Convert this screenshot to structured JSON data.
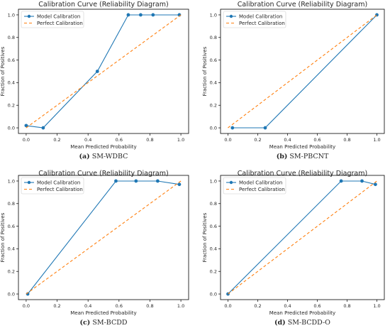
{
  "colors": {
    "model": "#1f77b4",
    "perfect": "#ff7f0e",
    "axis": "#000000",
    "text": "#262626"
  },
  "chart_data": [
    {
      "type": "line",
      "title": "Calibration Curve (Reliability Diagram)",
      "xlabel": "Mean Predicted Probability",
      "ylabel": "Fraction of Positives",
      "caption_letter": "(a)",
      "caption_text": "SM-WDBC",
      "xlim": [
        -0.05,
        1.05
      ],
      "ylim": [
        -0.05,
        1.05
      ],
      "xticks": [
        "0.0",
        "0.2",
        "0.4",
        "0.6",
        "0.8",
        "1.0"
      ],
      "yticks": [
        "0.0",
        "0.2",
        "0.4",
        "0.6",
        "0.8",
        "1.0"
      ],
      "legend_position": "upper-left",
      "series": [
        {
          "name": "Model Calibration",
          "style": "solid-marker",
          "x": [
            0.0,
            0.11,
            0.46,
            0.66,
            0.74,
            0.82,
            0.99
          ],
          "y": [
            0.02,
            0.0,
            0.5,
            1.0,
            1.0,
            1.0,
            1.0
          ]
        },
        {
          "name": "Perfect Calibration",
          "style": "dashed",
          "x": [
            0.0,
            1.0
          ],
          "y": [
            0.0,
            1.0
          ]
        }
      ]
    },
    {
      "type": "line",
      "title": "Calibration Curve (Reliability Diagram)",
      "xlabel": "Mean Predicted Probability",
      "ylabel": "Fraction of Positives",
      "caption_letter": "(b)",
      "caption_text": "SM-PBCNT",
      "xlim": [
        -0.05,
        1.05
      ],
      "ylim": [
        -0.05,
        1.05
      ],
      "xticks": [
        "0.0",
        "0.2",
        "0.4",
        "0.6",
        "0.8",
        "1.0"
      ],
      "yticks": [
        "0.0",
        "0.2",
        "0.4",
        "0.6",
        "0.8",
        "1.0"
      ],
      "legend_position": "upper-left",
      "series": [
        {
          "name": "Model Calibration",
          "style": "solid-marker",
          "x": [
            0.03,
            0.25,
            1.0
          ],
          "y": [
            0.0,
            0.0,
            1.0
          ]
        },
        {
          "name": "Perfect Calibration",
          "style": "dashed",
          "x": [
            0.0,
            1.0
          ],
          "y": [
            0.0,
            1.0
          ]
        }
      ]
    },
    {
      "type": "line",
      "title": "Calibration Curve (Reliability Diagram)",
      "xlabel": "Mean Predicted Probability",
      "ylabel": "Fraction of Positives",
      "caption_letter": "(c)",
      "caption_text": "SM-BCDD",
      "xlim": [
        -0.05,
        1.05
      ],
      "ylim": [
        -0.05,
        1.05
      ],
      "xticks": [
        "0.0",
        "0.2",
        "0.4",
        "0.6",
        "0.8",
        "1.0"
      ],
      "yticks": [
        "0.0",
        "0.2",
        "0.4",
        "0.6",
        "0.8",
        "1.0"
      ],
      "legend_position": "upper-left",
      "series": [
        {
          "name": "Model Calibration",
          "style": "solid-marker",
          "x": [
            0.01,
            0.58,
            0.71,
            0.85,
            0.99
          ],
          "y": [
            0.0,
            1.0,
            1.0,
            1.0,
            0.97
          ]
        },
        {
          "name": "Perfect Calibration",
          "style": "dashed",
          "x": [
            0.0,
            1.0
          ],
          "y": [
            0.0,
            1.0
          ]
        }
      ]
    },
    {
      "type": "line",
      "title": "Calibration Curve (Reliability Diagram)",
      "xlabel": "Mean Predicted Probability",
      "ylabel": "Fraction of Positives",
      "caption_letter": "(d)",
      "caption_text": "SM-BCDD-O",
      "xlim": [
        -0.05,
        1.05
      ],
      "ylim": [
        -0.05,
        1.05
      ],
      "xticks": [
        "0.0",
        "0.2",
        "0.4",
        "0.6",
        "0.8",
        "1.0"
      ],
      "yticks": [
        "0.0",
        "0.2",
        "0.4",
        "0.6",
        "0.8",
        "1.0"
      ],
      "legend_position": "upper-left",
      "series": [
        {
          "name": "Model Calibration",
          "style": "solid-marker",
          "x": [
            0.0,
            0.76,
            0.9,
            0.99
          ],
          "y": [
            0.0,
            1.0,
            1.0,
            0.97
          ]
        },
        {
          "name": "Perfect Calibration",
          "style": "dashed",
          "x": [
            0.0,
            1.0
          ],
          "y": [
            0.0,
            1.0
          ]
        }
      ]
    }
  ]
}
